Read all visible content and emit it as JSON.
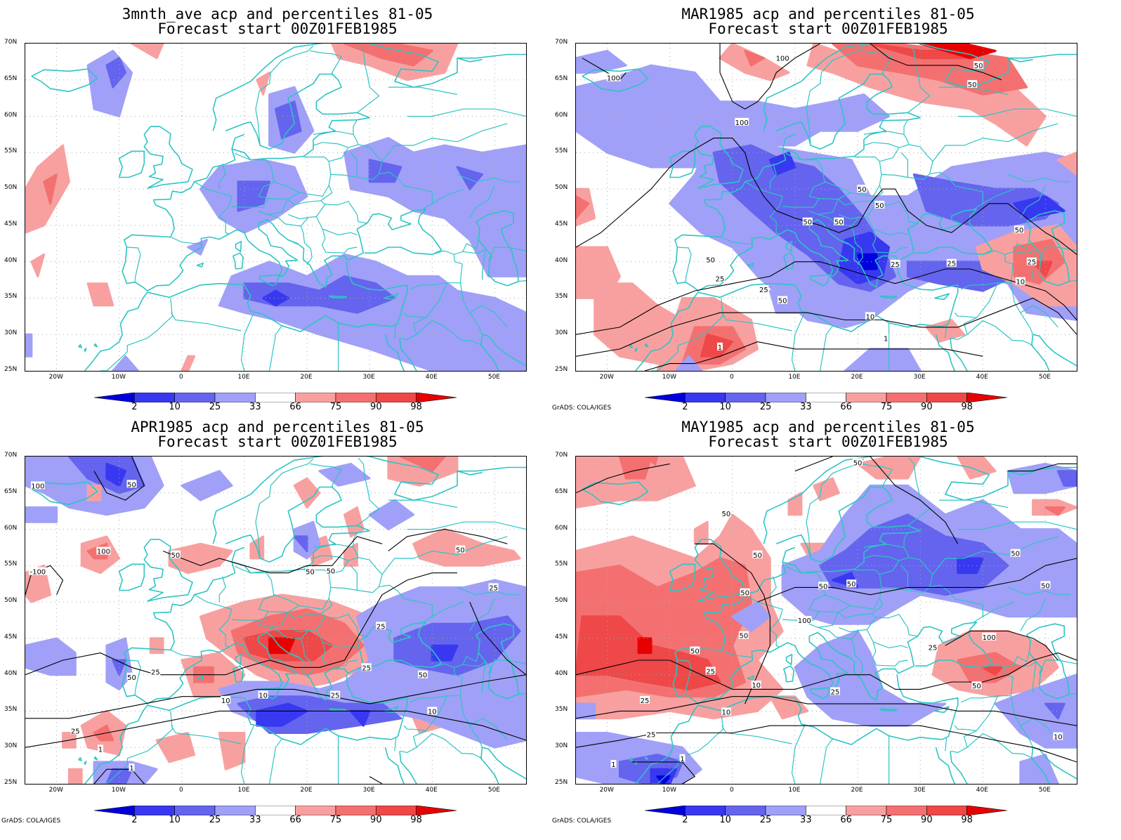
{
  "panels": [
    {
      "id": "p1",
      "title_line1": "3mnth_ave acp and percentiles 81-05",
      "title_line2": "Forecast start 00Z01FEB1985",
      "credit": ""
    },
    {
      "id": "p2",
      "title_line1": "MAR1985 acp and percentiles 81-05",
      "title_line2": "Forecast start 00Z01FEB1985",
      "credit": "GrADS: COLA/IGES"
    },
    {
      "id": "p3",
      "title_line1": "APR1985 acp and percentiles 81-05",
      "title_line2": "Forecast start 00Z01FEB1985",
      "credit": "GrADS: COLA/IGES"
    },
    {
      "id": "p4",
      "title_line1": "MAY1985 acp and percentiles 81-05",
      "title_line2": "Forecast start 00Z01FEB1985",
      "credit": "GrADS: COLA/IGES"
    }
  ],
  "axes": {
    "lat_labels": [
      "70N",
      "65N",
      "60N",
      "55N",
      "50N",
      "45N",
      "40N",
      "35N",
      "30N",
      "25N"
    ],
    "lon_labels": [
      "20W",
      "10W",
      "0",
      "10E",
      "20E",
      "30E",
      "40E",
      "50E"
    ]
  },
  "colorbar": {
    "labels": [
      "2",
      "10",
      "25",
      "33",
      "66",
      "75",
      "90",
      "98"
    ],
    "colors": [
      "#0000dc",
      "#3838f0",
      "#6464ee",
      "#a0a0f8",
      "#ffffff",
      "#f8a0a0",
      "#f47070",
      "#ee4848",
      "#e80000"
    ]
  },
  "colors": {
    "coast": "#2ec4c4",
    "grid": "#aaaaaa",
    "contour": "#000000"
  },
  "contour_labels": {
    "p2": [
      "100",
      "100",
      "100",
      "50",
      "50",
      "50",
      "50",
      "50",
      "50",
      "25",
      "25",
      "25",
      "25",
      "10",
      "10",
      "1",
      "1",
      "50",
      "50",
      "25",
      "50"
    ],
    "p3": [
      "50",
      "100",
      "100",
      "-100",
      "50",
      "50",
      "50",
      "25",
      "50",
      "50",
      "25",
      "10",
      "25",
      "10",
      "10",
      "25",
      "1",
      "1",
      "25",
      "50",
      "25"
    ],
    "p4": [
      "50",
      "50",
      "50",
      "50",
      "50",
      "50",
      "50",
      "100",
      "50",
      "25",
      "100",
      "50",
      "25",
      "10",
      "25",
      "10",
      "1",
      "1",
      "25",
      "10",
      "50",
      "25",
      "50"
    ]
  }
}
